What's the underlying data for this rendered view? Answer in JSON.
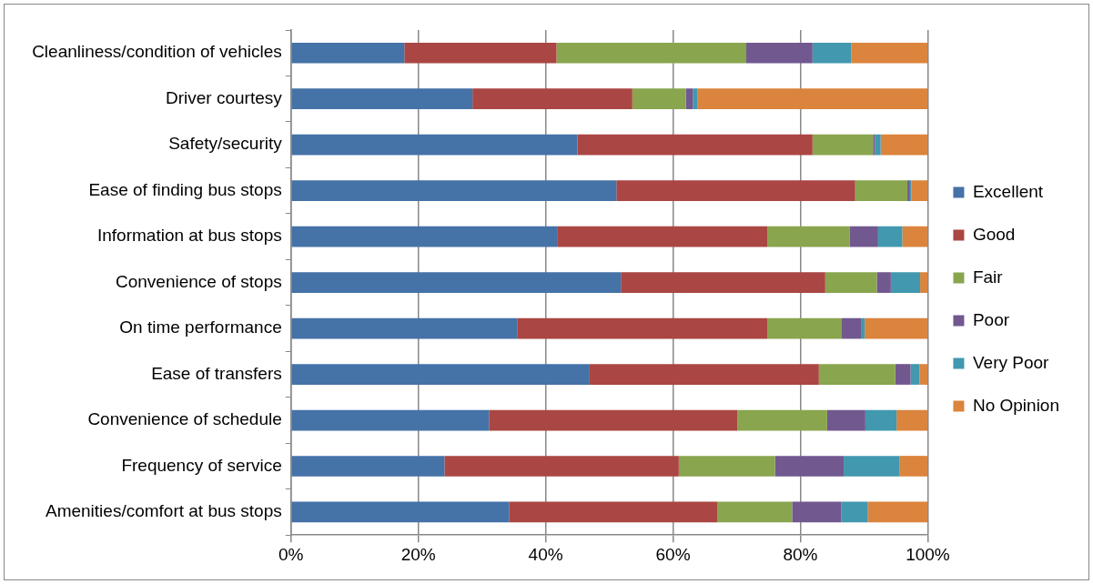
{
  "chart_data": {
    "type": "bar",
    "orientation": "horizontal",
    "stacked": true,
    "categories": [
      "Cleanliness/condition of vehicles",
      "Driver courtesy",
      "Safety/security",
      "Ease of finding bus stops",
      "Information at bus stops",
      "Convenience of stops",
      "On time performance",
      "Ease of transfers",
      "Convenience of schedule",
      "Frequency of service",
      "Amenities/comfort at bus stops"
    ],
    "series": [
      {
        "name": "Excellent",
        "color": "#4572a7",
        "values": [
          17.8,
          28.5,
          45.0,
          51.1,
          41.9,
          51.8,
          35.6,
          46.9,
          31.1,
          24.1,
          34.3
        ]
      },
      {
        "name": "Good",
        "color": "#aa4643",
        "values": [
          23.9,
          25.1,
          36.9,
          37.5,
          32.9,
          32.1,
          39.2,
          36.0,
          39.0,
          36.8,
          32.7
        ]
      },
      {
        "name": "Fair",
        "color": "#89a54e",
        "values": [
          29.8,
          8.4,
          9.5,
          8.2,
          12.9,
          8.1,
          11.7,
          12.0,
          14.1,
          15.1,
          11.7
        ]
      },
      {
        "name": "Poor",
        "color": "#71588f",
        "values": [
          10.4,
          1.1,
          0.3,
          0.4,
          4.5,
          2.2,
          3.0,
          2.4,
          6.0,
          10.8,
          7.7
        ]
      },
      {
        "name": "Very Poor",
        "color": "#4198af",
        "values": [
          6.1,
          0.7,
          0.9,
          0.2,
          3.8,
          4.6,
          0.6,
          1.4,
          4.9,
          8.8,
          4.2
        ]
      },
      {
        "name": "No Opinion",
        "color": "#db843d",
        "values": [
          12.0,
          36.2,
          7.4,
          2.6,
          4.0,
          1.2,
          9.9,
          1.3,
          4.9,
          4.4,
          9.4
        ]
      }
    ],
    "xlim": [
      0,
      100
    ],
    "xticks": [
      {
        "value": 0,
        "label": "0%"
      },
      {
        "value": 20,
        "label": "20%"
      },
      {
        "value": 40,
        "label": "40%"
      },
      {
        "value": 60,
        "label": "60%"
      },
      {
        "value": 80,
        "label": "80%"
      },
      {
        "value": 100,
        "label": "100%"
      }
    ],
    "grid": "x",
    "legend": "right"
  }
}
